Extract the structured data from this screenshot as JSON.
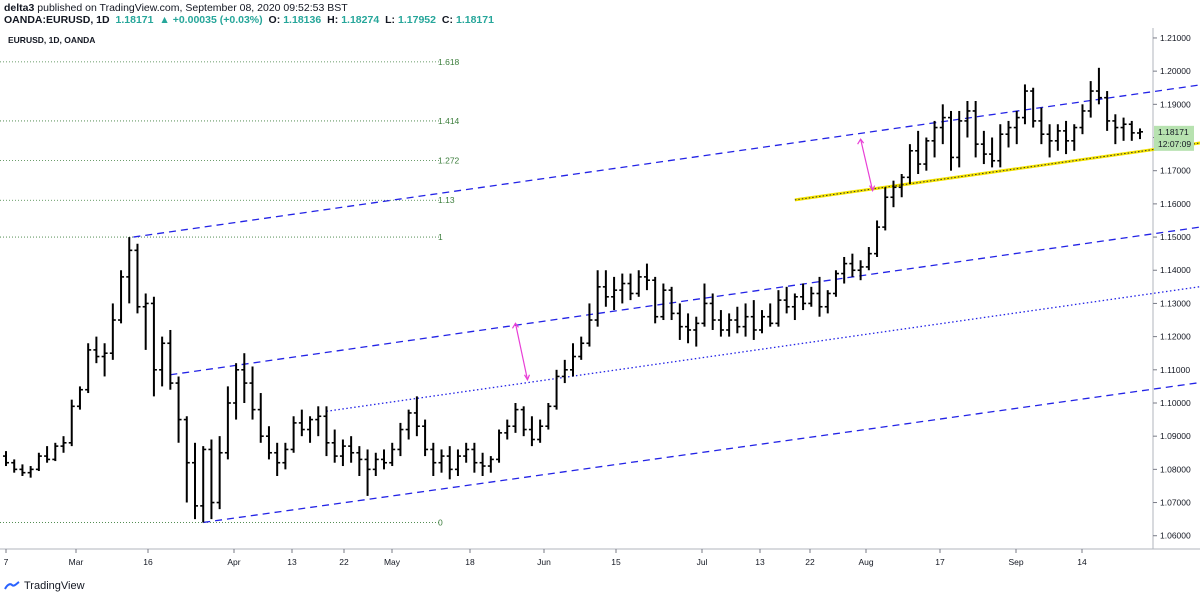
{
  "header": {
    "publish_text": "published on TradingView.com, September 08, 2020 09:52:53 BST",
    "author": "delta3",
    "symbol": "OANDA:EURUSD, 1D",
    "last": "1.18171",
    "change": "▲ +0.00035 (+0.03%)",
    "open_label": "O:",
    "open": "1.18136",
    "high_label": "H:",
    "high": "1.18274",
    "low_label": "L:",
    "low": "1.17952",
    "close_label": "C:",
    "close": "1.18171"
  },
  "chart_title": "EURUSD, 1D, OANDA",
  "price_label": "1.18171",
  "countdown": "12:07:09",
  "brand": "TradingView",
  "colors": {
    "channel": "#2323e6",
    "fib": "#3b7d3b",
    "arrow": "#e83fd6",
    "yellow": "#f5e400",
    "price_box": "#b7e2b0"
  },
  "chart_data": {
    "type": "ohlc",
    "y_ticks": [
      "1.21000",
      "1.20000",
      "1.19000",
      "1.18000",
      "1.17000",
      "1.16000",
      "1.15000",
      "1.14000",
      "1.13000",
      "1.12000",
      "1.11000",
      "1.10000",
      "1.09000",
      "1.08000",
      "1.07000",
      "1.06000"
    ],
    "ylim": [
      1.056,
      1.213
    ],
    "x_ticks": [
      "7",
      "Mar",
      "16",
      "Apr",
      "13",
      "22",
      "May",
      "18",
      "Jun",
      "15",
      "Jul",
      "13",
      "22",
      "Aug",
      "17",
      "Sep",
      "14"
    ],
    "fib_levels": [
      {
        "label": "1.618",
        "price": 1.2028
      },
      {
        "label": "1.414",
        "price": 1.185
      },
      {
        "label": "1.272",
        "price": 1.1731
      },
      {
        "label": "1.13",
        "price": 1.1611
      },
      {
        "label": "1",
        "price": 1.15
      },
      {
        "label": "0",
        "price": 1.064
      }
    ],
    "last_price": 1.18171,
    "bars": [
      [
        1.084,
        1.0855,
        1.081,
        1.082
      ],
      [
        1.082,
        1.083,
        1.079,
        1.08
      ],
      [
        1.08,
        1.0815,
        1.078,
        1.079
      ],
      [
        1.079,
        1.081,
        1.0775,
        1.08
      ],
      [
        1.08,
        1.085,
        1.0795,
        1.084
      ],
      [
        1.084,
        1.087,
        1.082,
        1.083
      ],
      [
        1.083,
        1.088,
        1.0825,
        1.087
      ],
      [
        1.087,
        1.09,
        1.085,
        1.088
      ],
      [
        1.088,
        1.101,
        1.087,
        1.099
      ],
      [
        1.099,
        1.105,
        1.098,
        1.104
      ],
      [
        1.104,
        1.118,
        1.103,
        1.116
      ],
      [
        1.116,
        1.12,
        1.112,
        1.114
      ],
      [
        1.114,
        1.118,
        1.108,
        1.115
      ],
      [
        1.115,
        1.13,
        1.113,
        1.125
      ],
      [
        1.125,
        1.14,
        1.124,
        1.138
      ],
      [
        1.138,
        1.15,
        1.13,
        1.146
      ],
      [
        1.146,
        1.148,
        1.127,
        1.129
      ],
      [
        1.129,
        1.133,
        1.116,
        1.13
      ],
      [
        1.13,
        1.132,
        1.102,
        1.11
      ],
      [
        1.11,
        1.12,
        1.105,
        1.118
      ],
      [
        1.118,
        1.122,
        1.104,
        1.106
      ],
      [
        1.106,
        1.108,
        1.088,
        1.095
      ],
      [
        1.095,
        1.096,
        1.07,
        1.082
      ],
      [
        1.082,
        1.088,
        1.065,
        1.069
      ],
      [
        1.069,
        1.087,
        1.064,
        1.086
      ],
      [
        1.086,
        1.089,
        1.065,
        1.07
      ],
      [
        1.07,
        1.09,
        1.068,
        1.085
      ],
      [
        1.085,
        1.105,
        1.083,
        1.1
      ],
      [
        1.1,
        1.112,
        1.095,
        1.11
      ],
      [
        1.11,
        1.115,
        1.1,
        1.106
      ],
      [
        1.106,
        1.111,
        1.095,
        1.098
      ],
      [
        1.098,
        1.103,
        1.088,
        1.09
      ],
      [
        1.09,
        1.093,
        1.083,
        1.085
      ],
      [
        1.085,
        1.088,
        1.078,
        1.082
      ],
      [
        1.082,
        1.088,
        1.08,
        1.086
      ],
      [
        1.086,
        1.096,
        1.085,
        1.094
      ],
      [
        1.094,
        1.098,
        1.09,
        1.092
      ],
      [
        1.092,
        1.096,
        1.088,
        1.095
      ],
      [
        1.095,
        1.099,
        1.09,
        1.096
      ],
      [
        1.096,
        1.099,
        1.084,
        1.088
      ],
      [
        1.088,
        1.092,
        1.082,
        1.084
      ],
      [
        1.084,
        1.089,
        1.081,
        1.087
      ],
      [
        1.087,
        1.09,
        1.082,
        1.085
      ],
      [
        1.085,
        1.087,
        1.078,
        1.083
      ],
      [
        1.083,
        1.086,
        1.072,
        1.08
      ],
      [
        1.08,
        1.085,
        1.078,
        1.083
      ],
      [
        1.083,
        1.086,
        1.08,
        1.082
      ],
      [
        1.082,
        1.088,
        1.081,
        1.086
      ],
      [
        1.086,
        1.094,
        1.084,
        1.092
      ],
      [
        1.092,
        1.098,
        1.089,
        1.097
      ],
      [
        1.097,
        1.102,
        1.09,
        1.093
      ],
      [
        1.093,
        1.095,
        1.084,
        1.086
      ],
      [
        1.086,
        1.088,
        1.078,
        1.082
      ],
      [
        1.082,
        1.086,
        1.079,
        1.084
      ],
      [
        1.084,
        1.087,
        1.077,
        1.08
      ],
      [
        1.08,
        1.086,
        1.078,
        1.084
      ],
      [
        1.084,
        1.088,
        1.082,
        1.086
      ],
      [
        1.086,
        1.088,
        1.079,
        1.082
      ],
      [
        1.082,
        1.085,
        1.078,
        1.081
      ],
      [
        1.081,
        1.084,
        1.079,
        1.083
      ],
      [
        1.083,
        1.092,
        1.082,
        1.091
      ],
      [
        1.091,
        1.095,
        1.089,
        1.093
      ],
      [
        1.093,
        1.1,
        1.091,
        1.098
      ],
      [
        1.098,
        1.099,
        1.09,
        1.092
      ],
      [
        1.092,
        1.096,
        1.087,
        1.089
      ],
      [
        1.089,
        1.095,
        1.088,
        1.093
      ],
      [
        1.093,
        1.1,
        1.092,
        1.099
      ],
      [
        1.099,
        1.11,
        1.098,
        1.108
      ],
      [
        1.108,
        1.113,
        1.106,
        1.11
      ],
      [
        1.11,
        1.118,
        1.108,
        1.114
      ],
      [
        1.114,
        1.12,
        1.113,
        1.118
      ],
      [
        1.118,
        1.13,
        1.117,
        1.125
      ],
      [
        1.125,
        1.14,
        1.123,
        1.135
      ],
      [
        1.135,
        1.14,
        1.129,
        1.132
      ],
      [
        1.132,
        1.138,
        1.128,
        1.134
      ],
      [
        1.134,
        1.139,
        1.13,
        1.136
      ],
      [
        1.136,
        1.139,
        1.131,
        1.133
      ],
      [
        1.133,
        1.14,
        1.132,
        1.138
      ],
      [
        1.138,
        1.142,
        1.134,
        1.137
      ],
      [
        1.137,
        1.138,
        1.124,
        1.126
      ],
      [
        1.126,
        1.136,
        1.125,
        1.134
      ],
      [
        1.134,
        1.135,
        1.125,
        1.127
      ],
      [
        1.127,
        1.13,
        1.119,
        1.123
      ],
      [
        1.123,
        1.127,
        1.118,
        1.122
      ],
      [
        1.122,
        1.126,
        1.117,
        1.124
      ],
      [
        1.124,
        1.136,
        1.123,
        1.13
      ],
      [
        1.13,
        1.133,
        1.122,
        1.125
      ],
      [
        1.125,
        1.128,
        1.12,
        1.122
      ],
      [
        1.122,
        1.127,
        1.12,
        1.125
      ],
      [
        1.125,
        1.129,
        1.121,
        1.123
      ],
      [
        1.123,
        1.13,
        1.12,
        1.126
      ],
      [
        1.126,
        1.131,
        1.119,
        1.122
      ],
      [
        1.122,
        1.128,
        1.121,
        1.126
      ],
      [
        1.126,
        1.13,
        1.123,
        1.124
      ],
      [
        1.124,
        1.134,
        1.123,
        1.131
      ],
      [
        1.131,
        1.135,
        1.127,
        1.129
      ],
      [
        1.129,
        1.133,
        1.125,
        1.132
      ],
      [
        1.132,
        1.136,
        1.128,
        1.13
      ],
      [
        1.13,
        1.135,
        1.129,
        1.133
      ],
      [
        1.133,
        1.138,
        1.126,
        1.129
      ],
      [
        1.129,
        1.134,
        1.127,
        1.133
      ],
      [
        1.133,
        1.14,
        1.132,
        1.139
      ],
      [
        1.139,
        1.144,
        1.136,
        1.142
      ],
      [
        1.142,
        1.145,
        1.138,
        1.14
      ],
      [
        1.14,
        1.143,
        1.137,
        1.141
      ],
      [
        1.141,
        1.147,
        1.14,
        1.145
      ],
      [
        1.145,
        1.155,
        1.144,
        1.153
      ],
      [
        1.153,
        1.165,
        1.152,
        1.162
      ],
      [
        1.162,
        1.167,
        1.159,
        1.165
      ],
      [
        1.165,
        1.169,
        1.162,
        1.168
      ],
      [
        1.168,
        1.178,
        1.166,
        1.176
      ],
      [
        1.176,
        1.182,
        1.169,
        1.172
      ],
      [
        1.172,
        1.18,
        1.17,
        1.179
      ],
      [
        1.179,
        1.185,
        1.174,
        1.183
      ],
      [
        1.183,
        1.19,
        1.178,
        1.186
      ],
      [
        1.186,
        1.188,
        1.17,
        1.174
      ],
      [
        1.174,
        1.188,
        1.171,
        1.185
      ],
      [
        1.185,
        1.191,
        1.18,
        1.188
      ],
      [
        1.188,
        1.191,
        1.174,
        1.178
      ],
      [
        1.178,
        1.182,
        1.172,
        1.175
      ],
      [
        1.175,
        1.18,
        1.171,
        1.173
      ],
      [
        1.173,
        1.184,
        1.171,
        1.181
      ],
      [
        1.181,
        1.185,
        1.177,
        1.183
      ],
      [
        1.183,
        1.188,
        1.178,
        1.186
      ],
      [
        1.186,
        1.196,
        1.184,
        1.194
      ],
      [
        1.194,
        1.195,
        1.183,
        1.185
      ],
      [
        1.185,
        1.189,
        1.178,
        1.181
      ],
      [
        1.181,
        1.184,
        1.174,
        1.179
      ],
      [
        1.179,
        1.184,
        1.176,
        1.182
      ],
      [
        1.182,
        1.185,
        1.175,
        1.179
      ],
      [
        1.179,
        1.184,
        1.176,
        1.183
      ],
      [
        1.183,
        1.19,
        1.181,
        1.188
      ],
      [
        1.188,
        1.197,
        1.186,
        1.194
      ],
      [
        1.194,
        1.201,
        1.19,
        1.192
      ],
      [
        1.192,
        1.194,
        1.182,
        1.185
      ],
      [
        1.185,
        1.187,
        1.178,
        1.183
      ],
      [
        1.183,
        1.186,
        1.179,
        1.184
      ],
      [
        1.184,
        1.185,
        1.179,
        1.1814
      ],
      [
        1.18136,
        1.18274,
        1.17952,
        1.18171
      ]
    ]
  }
}
